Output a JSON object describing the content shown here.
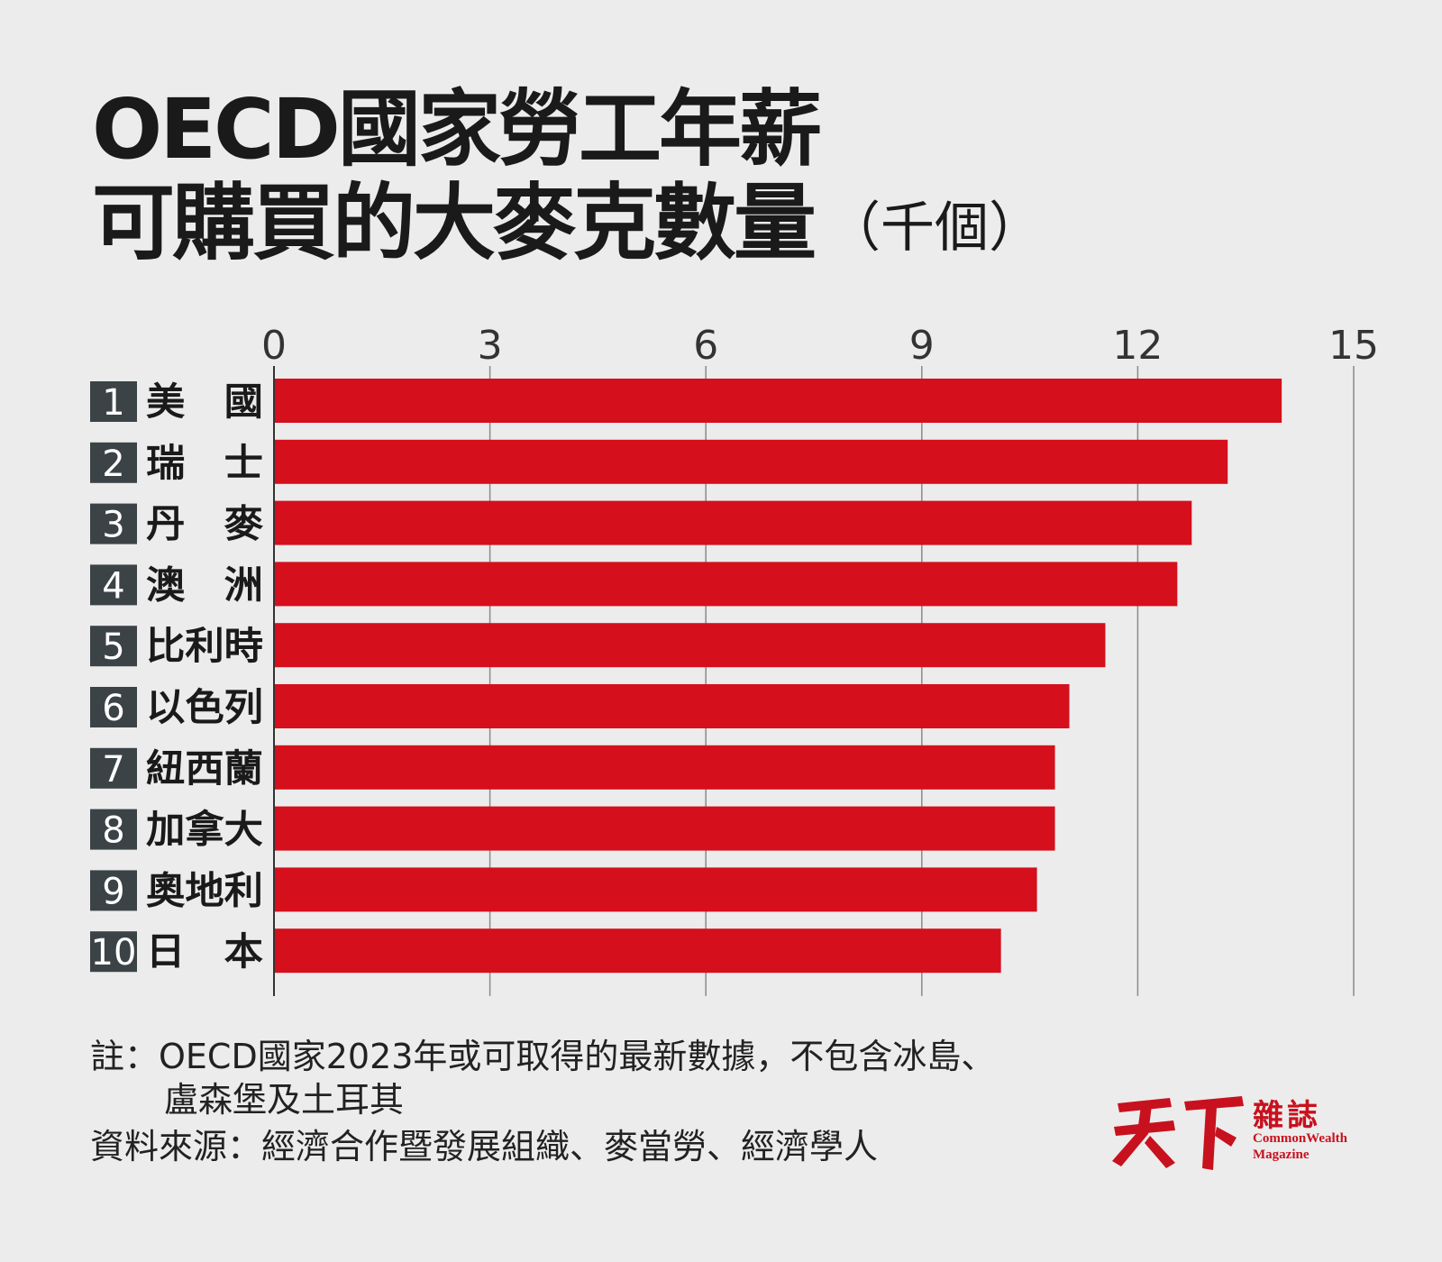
{
  "title": {
    "line1": "OECD國家勞工年薪",
    "line2": "可購買的大麥克數量",
    "unit": "（千個）"
  },
  "chart_data": {
    "type": "bar",
    "orientation": "horizontal",
    "xlim": [
      0,
      15
    ],
    "ticks": [
      "0",
      "3",
      "6",
      "9",
      "12",
      "15"
    ],
    "tick_values": [
      0,
      3,
      6,
      9,
      12,
      15
    ],
    "bar_color": "#d50f1c",
    "rank_badge_color": "#3c4347",
    "grid": true,
    "ranks": [
      "1",
      "2",
      "3",
      "4",
      "5",
      "6",
      "7",
      "8",
      "9",
      "10"
    ],
    "categories": [
      "美　國",
      "瑞　士",
      "丹　麥",
      "澳　洲",
      "比利時",
      "以色列",
      "紐西蘭",
      "加拿大",
      "奧地利",
      "日　本"
    ],
    "values": [
      14.0,
      13.25,
      12.75,
      12.55,
      11.55,
      11.05,
      10.85,
      10.85,
      10.6,
      10.1
    ]
  },
  "notes": {
    "note_line1": "註：OECD國家2023年或可取得的最新數據，不包含冰島、",
    "note_line2": "盧森堡及土耳其",
    "source": "資料來源：經濟合作暨發展組織、麥當勞、經濟學人"
  },
  "logo": {
    "mark": "天下",
    "name_cn": "雜誌",
    "name_en_1": "CommonWealth",
    "name_en_2": "Magazine",
    "color": "#c8111e"
  }
}
